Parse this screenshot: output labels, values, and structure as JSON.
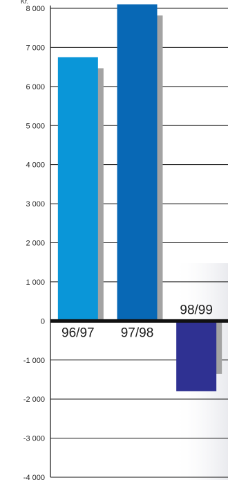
{
  "chart_data": {
    "type": "bar",
    "categories": [
      "96/97",
      "97/98",
      "98/99"
    ],
    "series": [
      {
        "values": [
          6750,
          8100,
          -1800
        ],
        "colors": [
          "#0a96d8",
          "#0868b5",
          "#2f3192"
        ]
      }
    ],
    "ylabel": "",
    "unit_label": "Kr.",
    "ylim": [
      -4000,
      8000
    ],
    "yticks": [
      8000,
      7000,
      6000,
      5000,
      4000,
      3000,
      2000,
      1000,
      0,
      -1000,
      -2000,
      -3000,
      -4000
    ],
    "ytick_labels": [
      "8 000",
      "7 000",
      "6 000",
      "5 000",
      "4 000",
      "3 000",
      "2 000",
      "1 000",
      "0",
      "-1 000",
      "-2 000",
      "-3 000",
      "-4 000"
    ],
    "grid": true,
    "colors": {
      "gridline": "#111111",
      "zero_line": "#111111",
      "shadow": "#a3a3a3"
    }
  }
}
